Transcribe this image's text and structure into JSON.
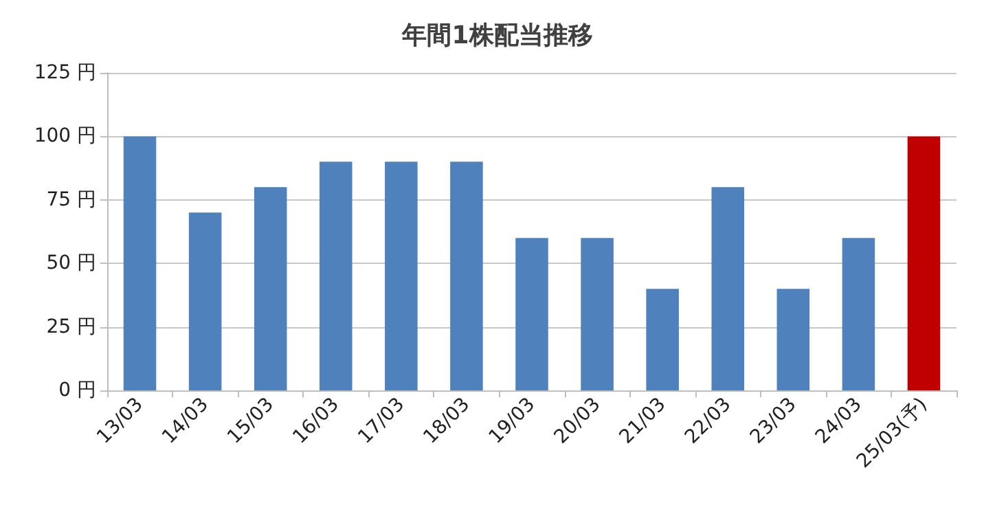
{
  "chart_data": {
    "type": "bar",
    "title": "年間1株配当推移",
    "categories": [
      "13/03",
      "14/03",
      "15/03",
      "16/03",
      "17/03",
      "18/03",
      "19/03",
      "20/03",
      "21/03",
      "22/03",
      "23/03",
      "24/03",
      "25/03(予)"
    ],
    "values": [
      100,
      70,
      80,
      90,
      90,
      90,
      60,
      60,
      40,
      80,
      40,
      60,
      100
    ],
    "colors": [
      "#4f81bd",
      "#4f81bd",
      "#4f81bd",
      "#4f81bd",
      "#4f81bd",
      "#4f81bd",
      "#4f81bd",
      "#4f81bd",
      "#4f81bd",
      "#4f81bd",
      "#4f81bd",
      "#4f81bd",
      "#c00000"
    ],
    "ylim": [
      0,
      125
    ],
    "yticks": [
      {
        "value": 0,
        "label": "0 円"
      },
      {
        "value": 25,
        "label": "25 円"
      },
      {
        "value": 50,
        "label": "50 円"
      },
      {
        "value": 75,
        "label": "75 円"
      },
      {
        "value": 100,
        "label": "100 円"
      },
      {
        "value": 125,
        "label": "125 円"
      }
    ],
    "grid": "y"
  }
}
